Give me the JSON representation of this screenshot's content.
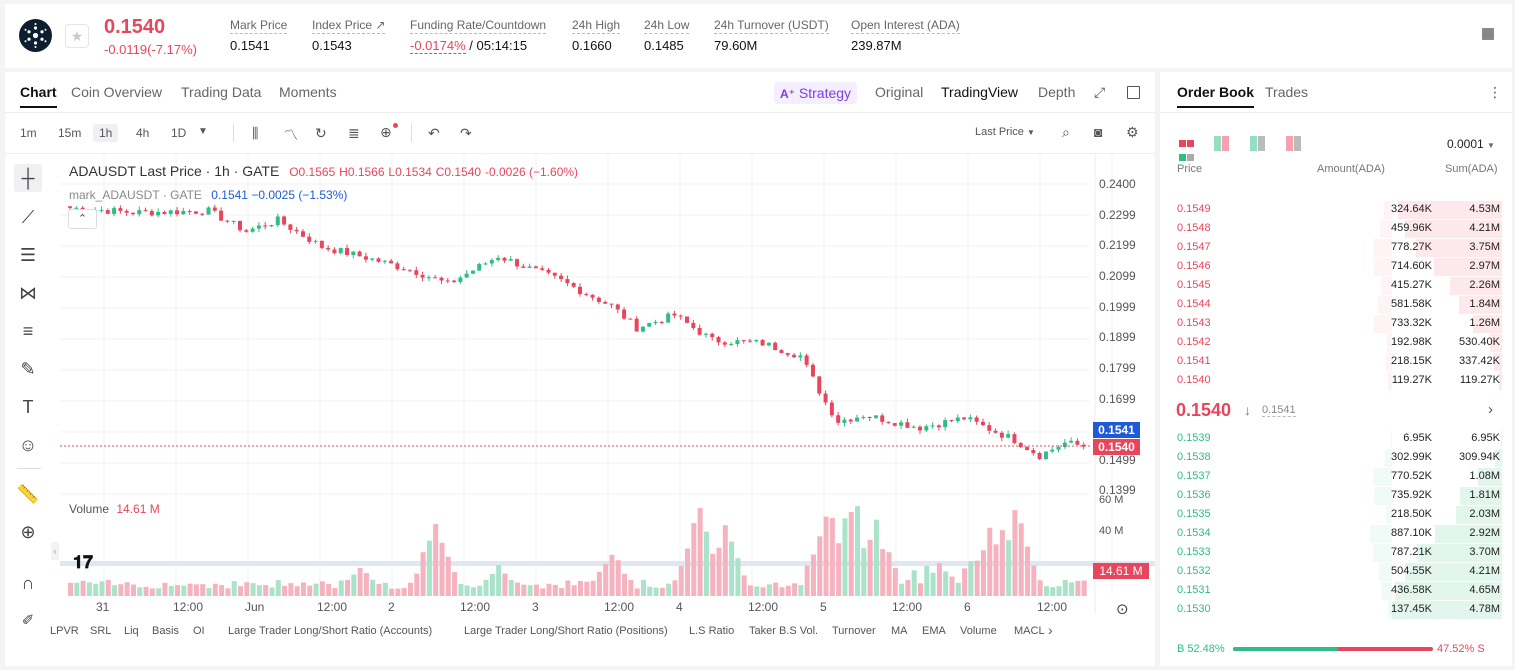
{
  "header": {
    "price": "0.1540",
    "change": "-0.0119(-7.17%)",
    "stats": [
      {
        "label": "Mark Price",
        "value": "0.1541"
      },
      {
        "label": "Index Price ↗",
        "value": "0.1543"
      },
      {
        "label": "Funding Rate/Countdown",
        "value": "-0.0174%",
        "value2": "/ 05:14:15"
      },
      {
        "label": "24h High",
        "value": "0.1660"
      },
      {
        "label": "24h Low",
        "value": "0.1485"
      },
      {
        "label": "24h Turnover (USDT)",
        "value": "79.60M"
      },
      {
        "label": "Open Interest (ADA)",
        "value": "239.87M"
      }
    ],
    "colors": {
      "down": "#e8465d",
      "up": "#2ebd85",
      "accent": "#7b3fe4"
    }
  },
  "chart_tabs": {
    "left": [
      "Chart",
      "Coin Overview",
      "Trading Data",
      "Moments"
    ],
    "strategy": "Strategy",
    "right": [
      "Original",
      "TradingView",
      "Depth"
    ]
  },
  "toolbar": {
    "timeframes": [
      "1m",
      "15m",
      "1h",
      "4h",
      "1D"
    ],
    "active_timeframe": "1h",
    "price_type": "Last Price"
  },
  "legend": {
    "title": "ADAUSDT Last Price · 1h · GATE",
    "o": "O0.1565",
    "h": "H0.1566",
    "l": "L0.1534",
    "c": "C0.1540",
    "chg": "-0.0026 (−1.60%)",
    "mark_title": "mark_ADAUSDT · GATE",
    "mark_val": "0.1541",
    "mark_chg": "−0.0025 (−1.53%)",
    "volume_label": "Volume",
    "volume_val": "14.61 M"
  },
  "price_axis": [
    "0.2400",
    "0.2299",
    "0.2199",
    "0.2099",
    "0.1999",
    "0.1899",
    "0.1799",
    "0.1699",
    "0.1499",
    "0.1399"
  ],
  "volume_axis": [
    "60 M",
    "40 M"
  ],
  "price_tags": {
    "mark": "0.1541",
    "last": "0.1540",
    "volume": "14.61 M"
  },
  "time_axis": [
    "31",
    "12:00",
    "Jun",
    "12:00",
    "2",
    "12:00",
    "3",
    "12:00",
    "4",
    "12:00",
    "5",
    "12:00",
    "6",
    "12:00"
  ],
  "bottom_tabs": [
    "LPVR",
    "SRL",
    "Liq",
    "Basis",
    "OI",
    "Large Trader Long/Short Ratio (Accounts)",
    "Large Trader Long/Short Ratio (Positions)",
    "L.S Ratio",
    "Taker B.S Vol.",
    "Turnover",
    "MA",
    "EMA",
    "Volume",
    "MACL"
  ],
  "chart_data": {
    "type": "candlestick",
    "ylim": [
      0.137,
      0.242
    ],
    "volume_ylim": [
      0,
      68
    ],
    "price_keyframes": [
      [
        0,
        0.2305
      ],
      [
        10,
        0.229
      ],
      [
        22,
        0.2295
      ],
      [
        28,
        0.223
      ],
      [
        33,
        0.2265
      ],
      [
        40,
        0.218
      ],
      [
        48,
        0.214
      ],
      [
        55,
        0.21
      ],
      [
        60,
        0.206
      ],
      [
        68,
        0.215
      ],
      [
        78,
        0.207
      ],
      [
        86,
        0.199
      ],
      [
        90,
        0.192
      ],
      [
        96,
        0.196
      ],
      [
        102,
        0.188
      ],
      [
        110,
        0.187
      ],
      [
        116,
        0.183
      ],
      [
        120,
        0.168
      ],
      [
        122,
        0.162
      ],
      [
        126,
        0.164
      ],
      [
        135,
        0.16
      ],
      [
        142,
        0.163
      ],
      [
        150,
        0.156
      ],
      [
        154,
        0.151
      ],
      [
        158,
        0.155
      ],
      [
        161,
        0.154
      ]
    ],
    "volume_peaks": [
      [
        58,
        56
      ],
      [
        100,
        64
      ],
      [
        104,
        50
      ],
      [
        120,
        62
      ],
      [
        124,
        66
      ],
      [
        128,
        45
      ],
      [
        150,
        60
      ],
      [
        146,
        42
      ],
      [
        86,
        33
      ],
      [
        68,
        22
      ],
      [
        46,
        22
      ]
    ]
  },
  "orderbook": {
    "tabs": [
      "Order Book",
      "Trades"
    ],
    "precision": "0.0001",
    "headers": [
      "Price",
      "Amount(ADA)",
      "Sum(ADA)"
    ],
    "asks": [
      [
        "0.1549",
        "324.64K",
        "4.53M",
        0.95,
        0.07
      ],
      [
        "0.1548",
        "459.96K",
        "4.21M",
        0.88,
        0.1
      ],
      [
        "0.1547",
        "778.27K",
        "3.75M",
        0.78,
        0.16
      ],
      [
        "0.1546",
        "714.60K",
        "2.97M",
        0.62,
        0.15
      ],
      [
        "0.1545",
        "415.27K",
        "2.26M",
        0.47,
        0.09
      ],
      [
        "0.1544",
        "581.58K",
        "1.84M",
        0.39,
        0.12
      ],
      [
        "0.1543",
        "733.32K",
        "1.26M",
        0.26,
        0.15
      ],
      [
        "0.1542",
        "192.98K",
        "530.40K",
        0.11,
        0.04
      ],
      [
        "0.1541",
        "218.15K",
        "337.42K",
        0.07,
        0.05
      ],
      [
        "0.1540",
        "119.27K",
        "119.27K",
        0.03,
        0.03
      ]
    ],
    "mid_price": "0.1540",
    "mid_mark": "0.1541",
    "bids": [
      [
        "0.1539",
        "6.95K",
        "6.95K",
        0.01,
        0.01
      ],
      [
        "0.1538",
        "302.99K",
        "309.94K",
        0.06,
        0.06
      ],
      [
        "0.1537",
        "770.52K",
        "1.08M",
        0.22,
        0.16
      ],
      [
        "0.1536",
        "735.92K",
        "1.81M",
        0.38,
        0.15
      ],
      [
        "0.1535",
        "218.50K",
        "2.03M",
        0.42,
        0.05
      ],
      [
        "0.1534",
        "887.10K",
        "2.92M",
        0.61,
        0.18
      ],
      [
        "0.1533",
        "787.21K",
        "3.70M",
        0.77,
        0.16
      ],
      [
        "0.1532",
        "504.55K",
        "4.21M",
        0.88,
        0.11
      ],
      [
        "0.1531",
        "436.58K",
        "4.65M",
        0.97,
        0.09
      ],
      [
        "0.1530",
        "137.45K",
        "4.78M",
        1.0,
        0.03
      ]
    ],
    "buy_label": "B 52.48%",
    "sell_label": "47.52% S",
    "buy_ratio": 0.5248
  }
}
